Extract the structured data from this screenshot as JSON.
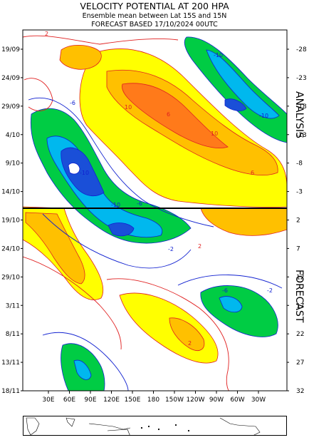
{
  "header": {
    "title": "VELOCITY POTENTIAL AT 200 HPA",
    "subtitle": "Ensemble mean between  Lat 15S and 15N",
    "forecast_line": "FORECAST  BASED 17/10/2024 00UTC"
  },
  "chart_data": {
    "type": "heatmap",
    "title": "VELOCITY POTENTIAL AT 200 HPA",
    "x_tick_labels": [
      "30E",
      "60E",
      "90E",
      "120E",
      "150E",
      "180",
      "150W",
      "120W",
      "90W",
      "60W",
      "30W"
    ],
    "y_tick_labels_left": [
      "19/09",
      "24/09",
      "29/09",
      "4/10",
      "9/10",
      "14/10",
      "19/10",
      "24/10",
      "29/10",
      "3/11",
      "8/11",
      "13/11",
      "18/11"
    ],
    "y_tick_labels_right": [
      "-28",
      "-23",
      "-18",
      "-13",
      "-8",
      "-3",
      "2",
      "7",
      "12",
      "17",
      "22",
      "27",
      "32"
    ],
    "section_labels": [
      "ANALYSIS",
      "FORECAST"
    ],
    "contour_labels": [
      "2",
      "-2",
      "6",
      "-6",
      "10",
      "-10"
    ],
    "analysis_forecast_divider": "17/10",
    "colors": {
      "positive_light": "#ffff00",
      "positive_mid": "#ffc000",
      "positive_strong": "#ff7a1a",
      "negative_light": "#00cc44",
      "negative_mid": "#00b8ee",
      "negative_strong": "#1a4fd8",
      "positive_contour": "#e02020",
      "negative_contour": "#1020d0"
    }
  }
}
